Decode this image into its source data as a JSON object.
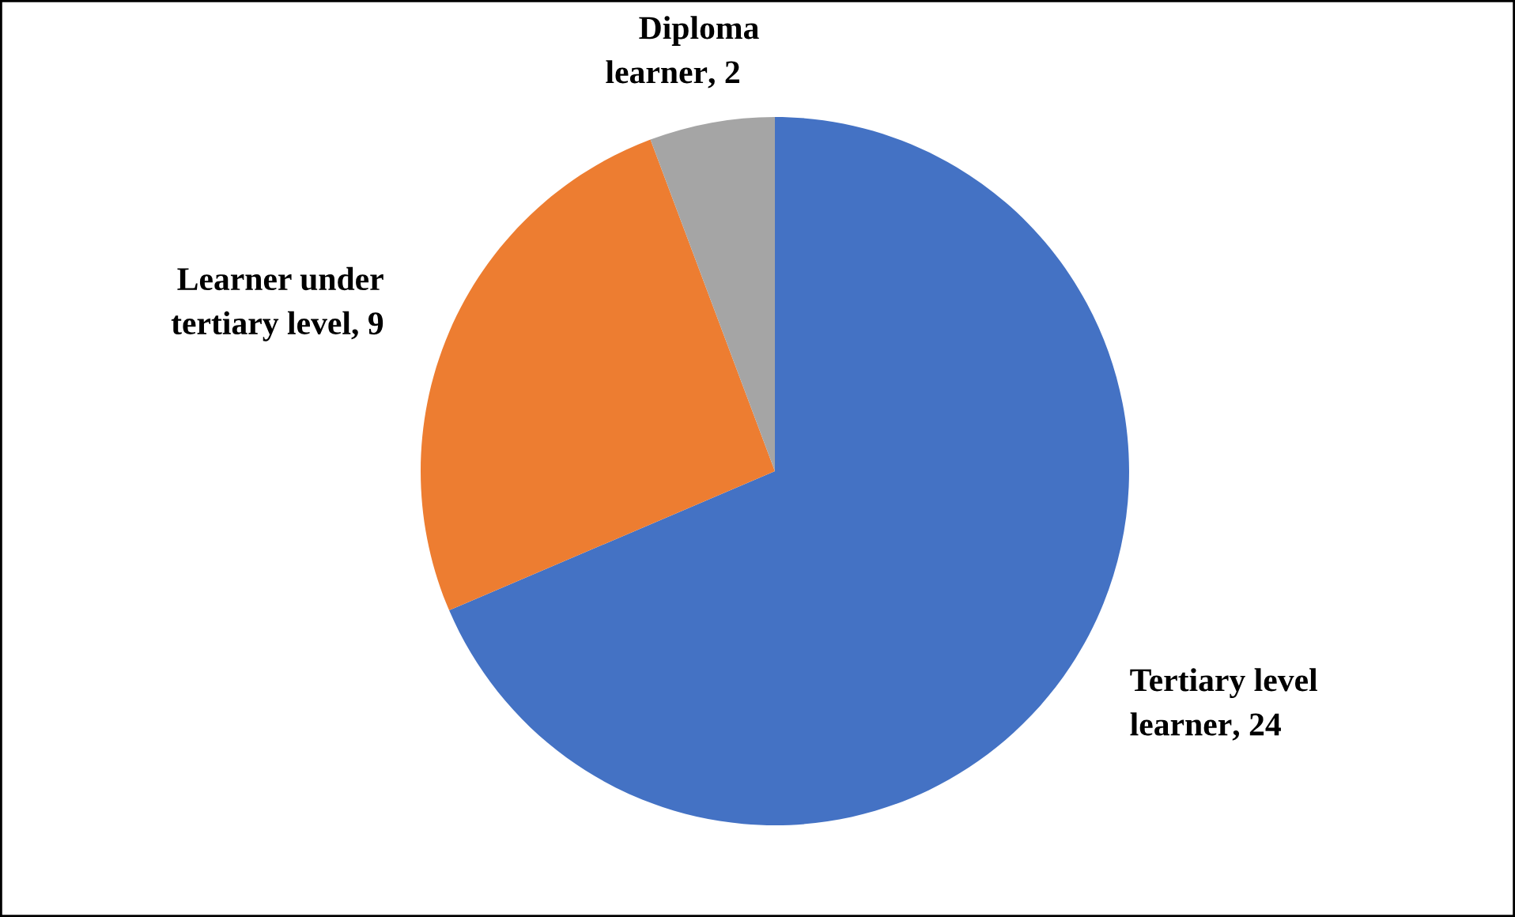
{
  "chart_data": {
    "type": "pie",
    "categories": [
      "Tertiary level learner",
      "Learner under tertiary level",
      "Diploma learner"
    ],
    "values": [
      24,
      9,
      2
    ],
    "colors": [
      "#4472c4",
      "#ed7d31",
      "#a5a5a5"
    ],
    "value_labels": [
      ", 24",
      ", 9",
      ", 2"
    ]
  }
}
